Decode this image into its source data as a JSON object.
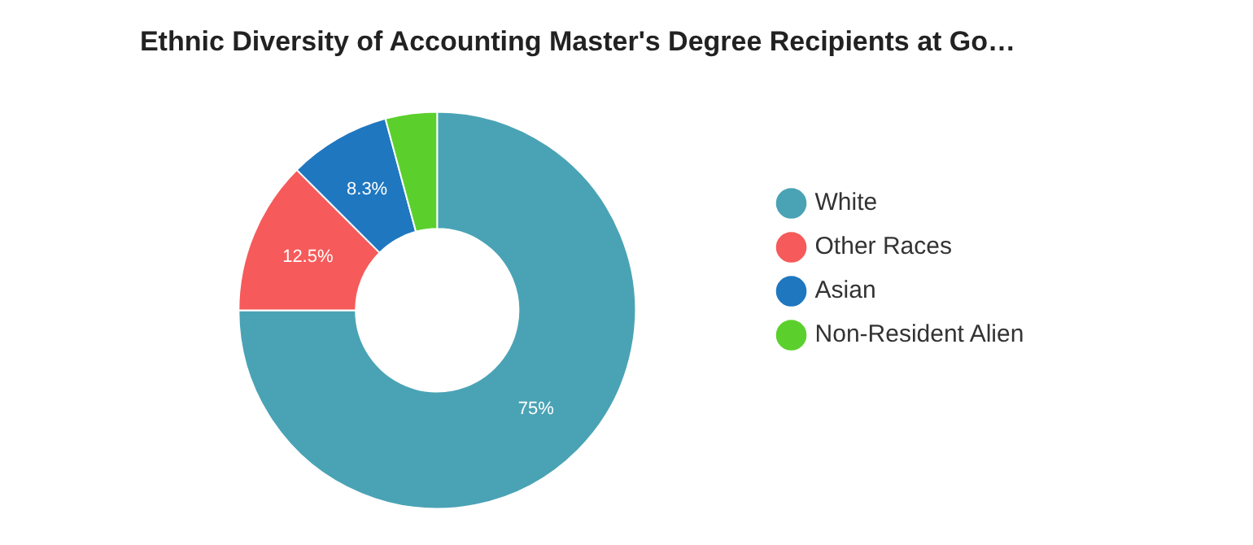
{
  "chart_data": {
    "type": "donut",
    "title": "Ethnic Diversity of Accounting Master's Degree Recipients at Go…",
    "categories": [
      "White",
      "Other Races",
      "Asian",
      "Non-Resident Alien"
    ],
    "values": [
      75,
      12.5,
      8.3,
      4.2
    ],
    "colors": [
      "#4aa3b5",
      "#f65a5a",
      "#1f77c0",
      "#5bd02c"
    ],
    "value_labels": [
      "75%",
      "12.5%",
      "8.3%",
      null
    ],
    "legend": "right"
  }
}
